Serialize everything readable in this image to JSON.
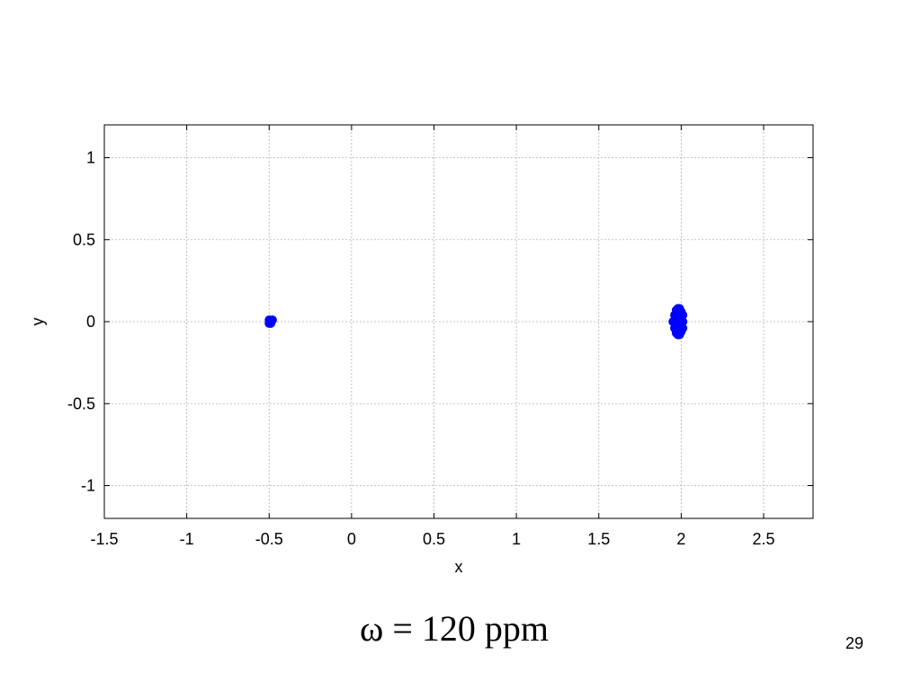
{
  "caption": "ω = 120 ppm",
  "page_number": "29",
  "chart_data": {
    "type": "scatter",
    "xlabel": "x",
    "ylabel": "y",
    "xlim": [
      -1.5,
      2.8
    ],
    "ylim": [
      -1.2,
      1.2
    ],
    "x_ticks": [
      -1.5,
      -1,
      -0.5,
      0,
      0.5,
      1,
      1.5,
      2,
      2.5
    ],
    "x_tick_labels": [
      "-1.5",
      "-1",
      "-0.5",
      "0",
      "0.5",
      "1",
      "1.5",
      "2",
      "2.5"
    ],
    "y_ticks": [
      1,
      0.5,
      0,
      -0.5,
      -1
    ],
    "y_tick_labels": [
      "1",
      "0.5",
      "0",
      "-0.5",
      "-1"
    ],
    "grid": true,
    "marker_color": "#0000ff",
    "series": [
      {
        "points": [
          [
            -0.5,
            0.01
          ],
          [
            -0.48,
            0.01
          ],
          [
            -0.49,
            -0.01
          ],
          [
            -0.5,
            -0.01
          ],
          [
            -0.49,
            0.0
          ],
          [
            1.95,
            0.0
          ],
          [
            1.96,
            0.04
          ],
          [
            1.96,
            -0.04
          ],
          [
            1.97,
            0.07
          ],
          [
            1.97,
            -0.07
          ],
          [
            1.98,
            0.0
          ],
          [
            1.98,
            0.05
          ],
          [
            1.98,
            -0.05
          ],
          [
            1.99,
            0.08
          ],
          [
            1.99,
            -0.08
          ],
          [
            2.0,
            0.02
          ],
          [
            2.0,
            -0.02
          ],
          [
            2.0,
            0.06
          ],
          [
            2.0,
            -0.06
          ],
          [
            2.01,
            0.0
          ],
          [
            2.01,
            0.04
          ],
          [
            2.01,
            -0.04
          ],
          [
            1.97,
            0.02
          ],
          [
            1.97,
            -0.02
          ],
          [
            1.99,
            0.03
          ],
          [
            1.99,
            -0.03
          ],
          [
            1.96,
            0.0
          ],
          [
            1.98,
            0.08
          ],
          [
            1.98,
            -0.08
          ],
          [
            2.0,
            0.0
          ]
        ]
      }
    ]
  }
}
